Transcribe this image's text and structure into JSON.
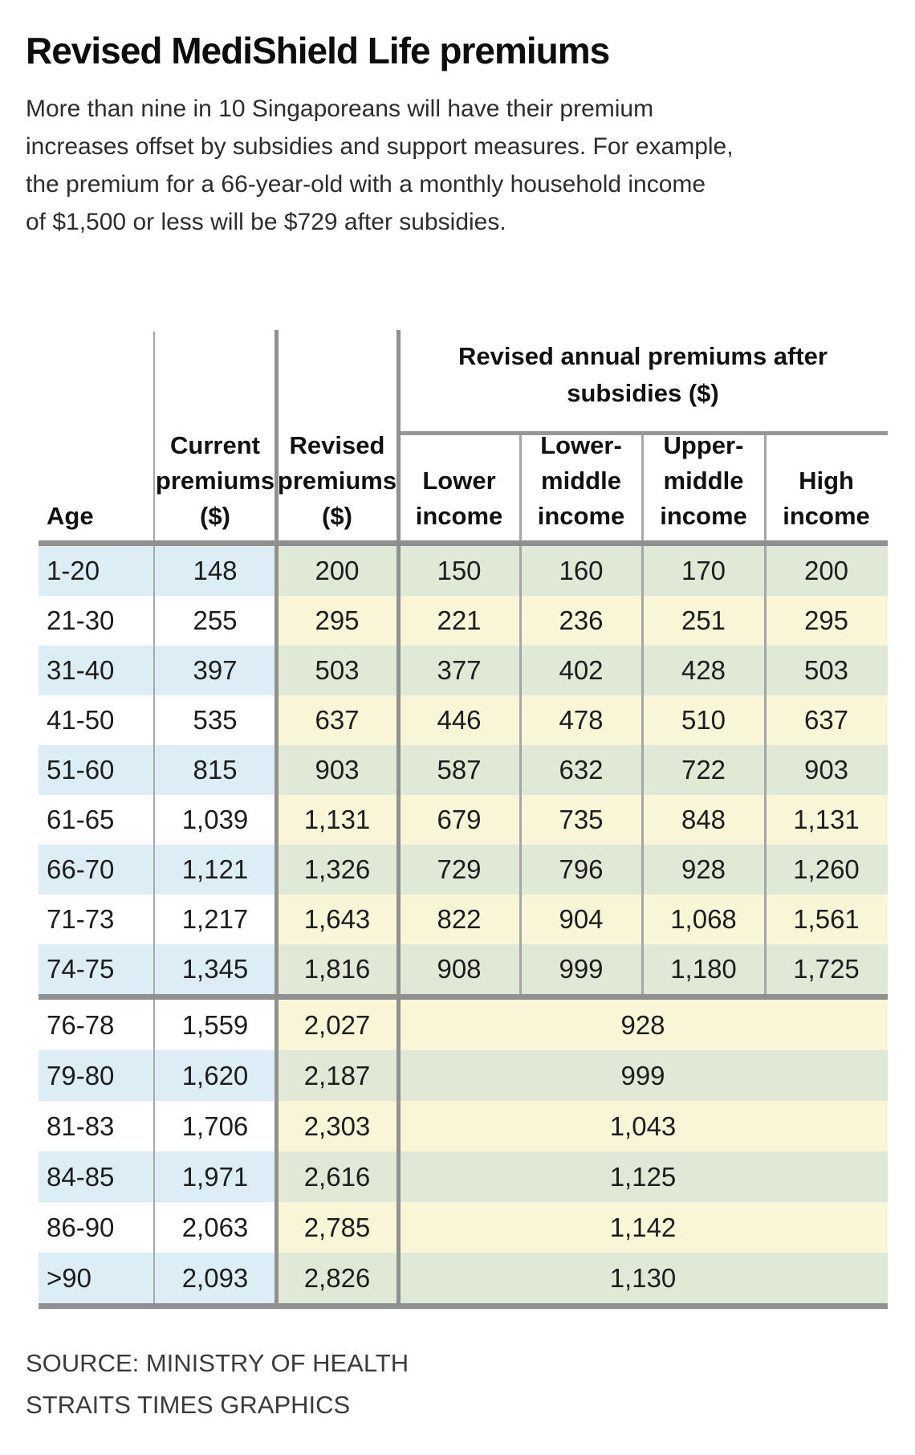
{
  "title": "Revised MediShield Life premiums",
  "intro": "More than nine in 10 Singaporeans will have their premium\nincreases offset by subsidies and support measures. For example,\nthe premium for a 66-year-old with a monthly household income\nof $1,500 or less will be $729 after subsidies.",
  "table": {
    "group_header_display": "Revised annual premiums after\nsubsidies ($)",
    "columns_display": [
      "Age",
      "Current\npremiums\n($)",
      "Revised\npremiums\n($)",
      "Lower\nincome",
      "Lower-\nmiddle\nincome",
      "Upper-\nmiddle\nincome",
      "High\nincome"
    ],
    "rows": [
      {
        "age": "1-20",
        "current": "148",
        "revised": "200",
        "lower": "150",
        "lower_middle": "160",
        "upper_middle": "170",
        "high": "200"
      },
      {
        "age": "21-30",
        "current": "255",
        "revised": "295",
        "lower": "221",
        "lower_middle": "236",
        "upper_middle": "251",
        "high": "295"
      },
      {
        "age": "31-40",
        "current": "397",
        "revised": "503",
        "lower": "377",
        "lower_middle": "402",
        "upper_middle": "428",
        "high": "503"
      },
      {
        "age": "41-50",
        "current": "535",
        "revised": "637",
        "lower": "446",
        "lower_middle": "478",
        "upper_middle": "510",
        "high": "637"
      },
      {
        "age": "51-60",
        "current": "815",
        "revised": "903",
        "lower": "587",
        "lower_middle": "632",
        "upper_middle": "722",
        "high": "903"
      },
      {
        "age": "61-65",
        "current": "1,039",
        "revised": "1,131",
        "lower": "679",
        "lower_middle": "735",
        "upper_middle": "848",
        "high": "1,131"
      },
      {
        "age": "66-70",
        "current": "1,121",
        "revised": "1,326",
        "lower": "729",
        "lower_middle": "796",
        "upper_middle": "928",
        "high": "1,260"
      },
      {
        "age": "71-73",
        "current": "1,217",
        "revised": "1,643",
        "lower": "822",
        "lower_middle": "904",
        "upper_middle": "1,068",
        "high": "1,561"
      },
      {
        "age": "74-75",
        "current": "1,345",
        "revised": "1,816",
        "lower": "908",
        "lower_middle": "999",
        "upper_middle": "1,180",
        "high": "1,725"
      }
    ],
    "merged_rows": [
      {
        "age": "76-78",
        "current": "1,559",
        "revised": "2,027",
        "subsidised": "928"
      },
      {
        "age": "79-80",
        "current": "1,620",
        "revised": "2,187",
        "subsidised": "999"
      },
      {
        "age": "81-83",
        "current": "1,706",
        "revised": "2,303",
        "subsidised": "1,043"
      },
      {
        "age": "84-85",
        "current": "1,971",
        "revised": "2,616",
        "subsidised": "1,125"
      },
      {
        "age": "86-90",
        "current": "2,063",
        "revised": "2,785",
        "subsidised": "1,142"
      },
      {
        "age": ">90",
        "current": "2,093",
        "revised": "2,826",
        "subsidised": "1,130"
      }
    ]
  },
  "source": [
    "SOURCE: MINISTRY OF HEALTH",
    "STRAITS TIMES GRAPHICS"
  ],
  "colors": {
    "row_blue": "#dcedf6",
    "row_green": "#e0e9d6",
    "row_yellow": "#f8f6d7",
    "rule_gray": "#909090"
  },
  "chart_data": {
    "type": "table",
    "title": "Revised MediShield Life premiums",
    "group_header": "Revised annual premiums after subsidies ($)",
    "columns": [
      "Age",
      "Current premiums ($)",
      "Revised premiums ($)",
      "Lower income",
      "Lower-middle income",
      "Upper-middle income",
      "High income"
    ],
    "rows": [
      [
        "1-20",
        148,
        200,
        150,
        160,
        170,
        200
      ],
      [
        "21-30",
        255,
        295,
        221,
        236,
        251,
        295
      ],
      [
        "31-40",
        397,
        503,
        377,
        402,
        428,
        503
      ],
      [
        "41-50",
        535,
        637,
        446,
        478,
        510,
        637
      ],
      [
        "51-60",
        815,
        903,
        587,
        632,
        722,
        903
      ],
      [
        "61-65",
        1039,
        1131,
        679,
        735,
        848,
        1131
      ],
      [
        "66-70",
        1121,
        1326,
        729,
        796,
        928,
        1260
      ],
      [
        "71-73",
        1217,
        1643,
        822,
        904,
        1068,
        1561
      ],
      [
        "74-75",
        1345,
        1816,
        908,
        999,
        1180,
        1725
      ]
    ],
    "merged_rows_single_subsidised_value": [
      [
        "76-78",
        1559,
        2027,
        928
      ],
      [
        "79-80",
        1620,
        2187,
        999
      ],
      [
        "81-83",
        1706,
        2303,
        1043
      ],
      [
        "84-85",
        1971,
        2616,
        1125
      ],
      [
        "86-90",
        2063,
        2785,
        1142
      ],
      [
        ">90",
        2093,
        2826,
        1130
      ]
    ],
    "source": "SOURCE: MINISTRY OF HEALTH — STRAITS TIMES GRAPHICS"
  }
}
